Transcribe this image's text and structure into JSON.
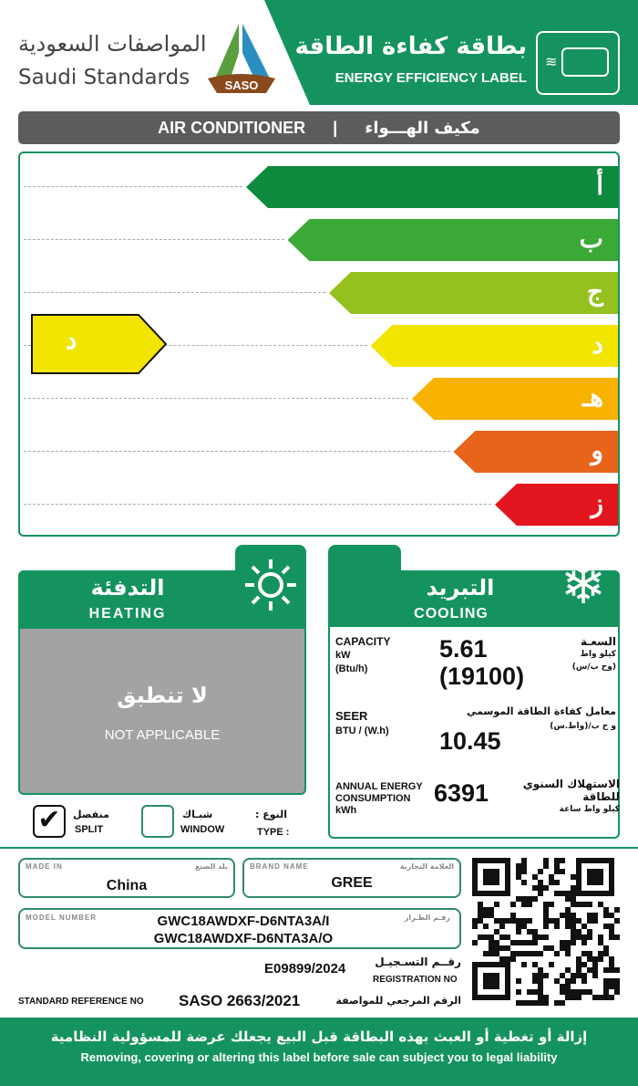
{
  "header": {
    "org_ar": "المواصفات السعودية",
    "org_en": "Saudi Standards",
    "logo_text": "SASO",
    "title_ar": "بطاقة كفاءة الطاقة",
    "title_en": "ENERGY EFFICIENCY LABEL",
    "icon": "air-conditioner-icon"
  },
  "product": {
    "en": "AIR CONDITIONER",
    "sep": "|",
    "ar": "مكيف الهـــواء"
  },
  "scale": {
    "classes": [
      {
        "label": "أ",
        "color": "#0e8a3e"
      },
      {
        "label": "ب",
        "color": "#3aa935"
      },
      {
        "label": "ج",
        "color": "#95c11f"
      },
      {
        "label": "د",
        "color": "#f2e500"
      },
      {
        "label": "هـ",
        "color": "#f8b200"
      },
      {
        "label": "و",
        "color": "#e8641b"
      },
      {
        "label": "ز",
        "color": "#e3161f"
      }
    ],
    "rating": "د",
    "rating_color": "#f2e500"
  },
  "heating": {
    "title_ar": "التدفئة",
    "title_en": "HEATING",
    "icon": "sun-icon",
    "na_ar": "لا تنطبق",
    "na_en": "NOT APPLICABLE"
  },
  "cooling": {
    "title_ar": "التبريد",
    "title_en": "COOLING",
    "icon": "snowflake-icon",
    "capacity": {
      "en": "CAPACITY",
      "unit1": "kW",
      "unit2": "(Btu/h)",
      "ar": "السعـة",
      "ar_u1": "كيلو واط",
      "ar_u2": "(وح ب/س)",
      "value": "5.61",
      "value2": "(19100)"
    },
    "seer": {
      "en": "SEER",
      "unit": "BTU / (W.h)",
      "ar": "معامل كفاءة الطاقة الموسمي",
      "ar_u": "و ح ب/(واط.س)",
      "value": "10.45"
    },
    "annual": {
      "en1": "ANNUAL ENERGY",
      "en2": "CONSUMPTION",
      "unit": "kWh",
      "ar1": "الاستهلاك السنوي",
      "ar2": "للطاقة",
      "ar_u": "كيلو واط ساعة",
      "value": "6391"
    }
  },
  "type": {
    "label_ar": "النوع :",
    "label_en": "TYPE :",
    "split_ar": "منفصل",
    "split_en": "SPLIT",
    "split_checked": true,
    "window_ar": "شبـاك",
    "window_en": "WINDOW",
    "window_checked": false
  },
  "info": {
    "made_in_label": "MADE IN",
    "made_in_ar": "بلد الصنع",
    "made_in": "China",
    "brand_label": "BRAND NAME",
    "brand_ar": "العلامة التجارية",
    "brand": "GREE",
    "model_label": "MODEL NUMBER",
    "model_ar": "رقـم الطـراز",
    "model1": "GWC18AWDXF-D6NTA3A/I",
    "model2": "GWC18AWDXF-D6NTA3A/O",
    "reg_ar": "رقــم التسـجيـل",
    "reg_en": "REGISTRATION NO",
    "reg": "E09899/2024",
    "std_en": "STANDARD REFERENCE NO",
    "std": "SASO 2663/2021",
    "std_ar": "الرقم المرجعي للمواصفة"
  },
  "footer": {
    "ar": "إزالة أو تغطية أو العبث بهذه البطاقة قبل البيع يجعلك عرضة للمسؤولية النظامية",
    "en": "Removing, covering or altering this label before sale can subject you to legal liability"
  }
}
